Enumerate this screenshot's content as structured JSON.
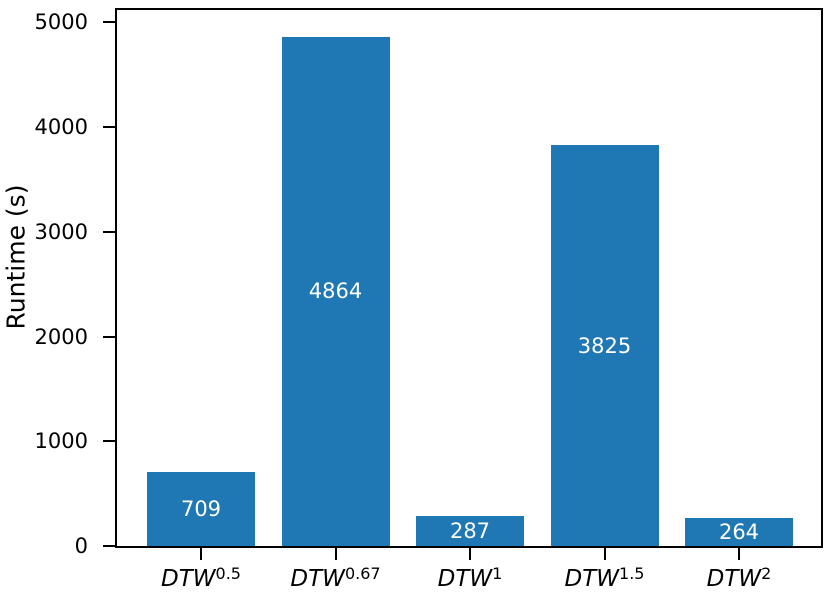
{
  "chart_data": {
    "type": "bar",
    "title": "",
    "xlabel": "",
    "ylabel": "Runtime (s)",
    "categories": [
      {
        "base": "DTW",
        "exponent": "0.5"
      },
      {
        "base": "DTW",
        "exponent": "0.67"
      },
      {
        "base": "DTW",
        "exponent": "1"
      },
      {
        "base": "DTW",
        "exponent": "1.5"
      },
      {
        "base": "DTW",
        "exponent": "2"
      }
    ],
    "values": [
      709,
      4864,
      287,
      3825,
      264
    ],
    "bar_value_labels": [
      "709",
      "4864",
      "287",
      "3825",
      "264"
    ],
    "yticks": [
      0,
      1000,
      2000,
      3000,
      4000,
      5000
    ],
    "ylim": [
      0,
      5118
    ],
    "grid": false,
    "legend": null,
    "colors": {
      "bar": "#1f77b4",
      "bar_label_text": "#ffffff",
      "axis": "#000000",
      "text": "#000000",
      "background": "#ffffff"
    }
  }
}
